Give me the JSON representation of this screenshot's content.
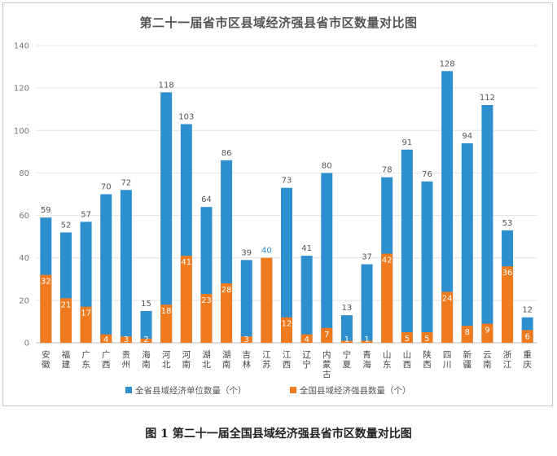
{
  "caption": "图 1 第二十一届全国县域经济强县省市区数量对比图",
  "colors": {
    "total": "#2E8FCF",
    "strong": "#F07A1E",
    "grid": "#e4e4e4",
    "axis": "#bdbdbd"
  },
  "chart_data": {
    "type": "bar",
    "title": "第二十一届省市区县域经济强县省市区数量对比图",
    "xlabel": "",
    "ylabel": "",
    "ylim": [
      0,
      140
    ],
    "yticks": [
      0,
      20,
      40,
      60,
      80,
      100,
      120,
      140
    ],
    "grid": true,
    "legend_position": "bottom",
    "categories": [
      "安徽",
      "福建",
      "广东",
      "广西",
      "贵州",
      "海南",
      "河北",
      "河南",
      "湖北",
      "湖南",
      "吉林",
      "江苏",
      "江西",
      "辽宁",
      "内蒙古",
      "宁夏",
      "青海",
      "山东",
      "山西",
      "陕西",
      "四川",
      "新疆",
      "云南",
      "浙江",
      "重庆"
    ],
    "series": [
      {
        "name": "全省县域经济单位数量（个）",
        "values": [
          59,
          52,
          57,
          70,
          72,
          15,
          118,
          103,
          64,
          86,
          39,
          40,
          73,
          41,
          80,
          13,
          37,
          78,
          91,
          76,
          128,
          94,
          112,
          53,
          12
        ]
      },
      {
        "name": "全国县域经济强县数量（个）",
        "values": [
          32,
          21,
          17,
          4,
          3,
          2,
          18,
          41,
          23,
          28,
          3,
          40,
          12,
          4,
          7,
          1,
          1,
          42,
          5,
          5,
          24,
          8,
          9,
          36,
          6
        ]
      }
    ]
  }
}
